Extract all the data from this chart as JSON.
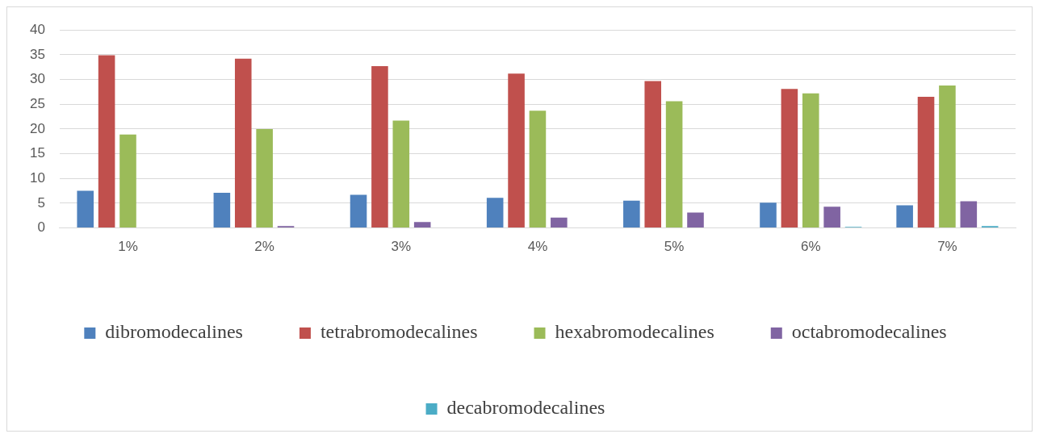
{
  "chart_data": {
    "type": "bar",
    "categories": [
      "1%",
      "2%",
      "3%",
      "4%",
      "5%",
      "6%",
      "7%"
    ],
    "series": [
      {
        "name": "dibromodecalines",
        "color": "#4f81bd",
        "values": [
          7.5,
          7.1,
          6.7,
          6.1,
          5.5,
          5.1,
          4.6
        ]
      },
      {
        "name": "tetrabromodecalines",
        "color": "#c0504d",
        "values": [
          34.9,
          34.2,
          32.7,
          31.2,
          29.7,
          28.1,
          26.5
        ]
      },
      {
        "name": "hexabromodecalines",
        "color": "#9bbb59",
        "values": [
          18.9,
          20.0,
          21.7,
          23.7,
          25.6,
          27.2,
          28.8
        ]
      },
      {
        "name": "octabromodecalines",
        "color": "#8064a2",
        "values": [
          0,
          0.4,
          1.2,
          2.1,
          3.1,
          4.3,
          5.4
        ]
      },
      {
        "name": "decabromodecalines",
        "color": "#4bacc6",
        "values": [
          0,
          0,
          0,
          0,
          0,
          0.2,
          0.4
        ]
      }
    ],
    "ylim": [
      0,
      40
    ],
    "yticks": [
      0,
      5,
      10,
      15,
      20,
      25,
      30,
      35,
      40
    ],
    "grid": "y",
    "legend": "bottom"
  }
}
